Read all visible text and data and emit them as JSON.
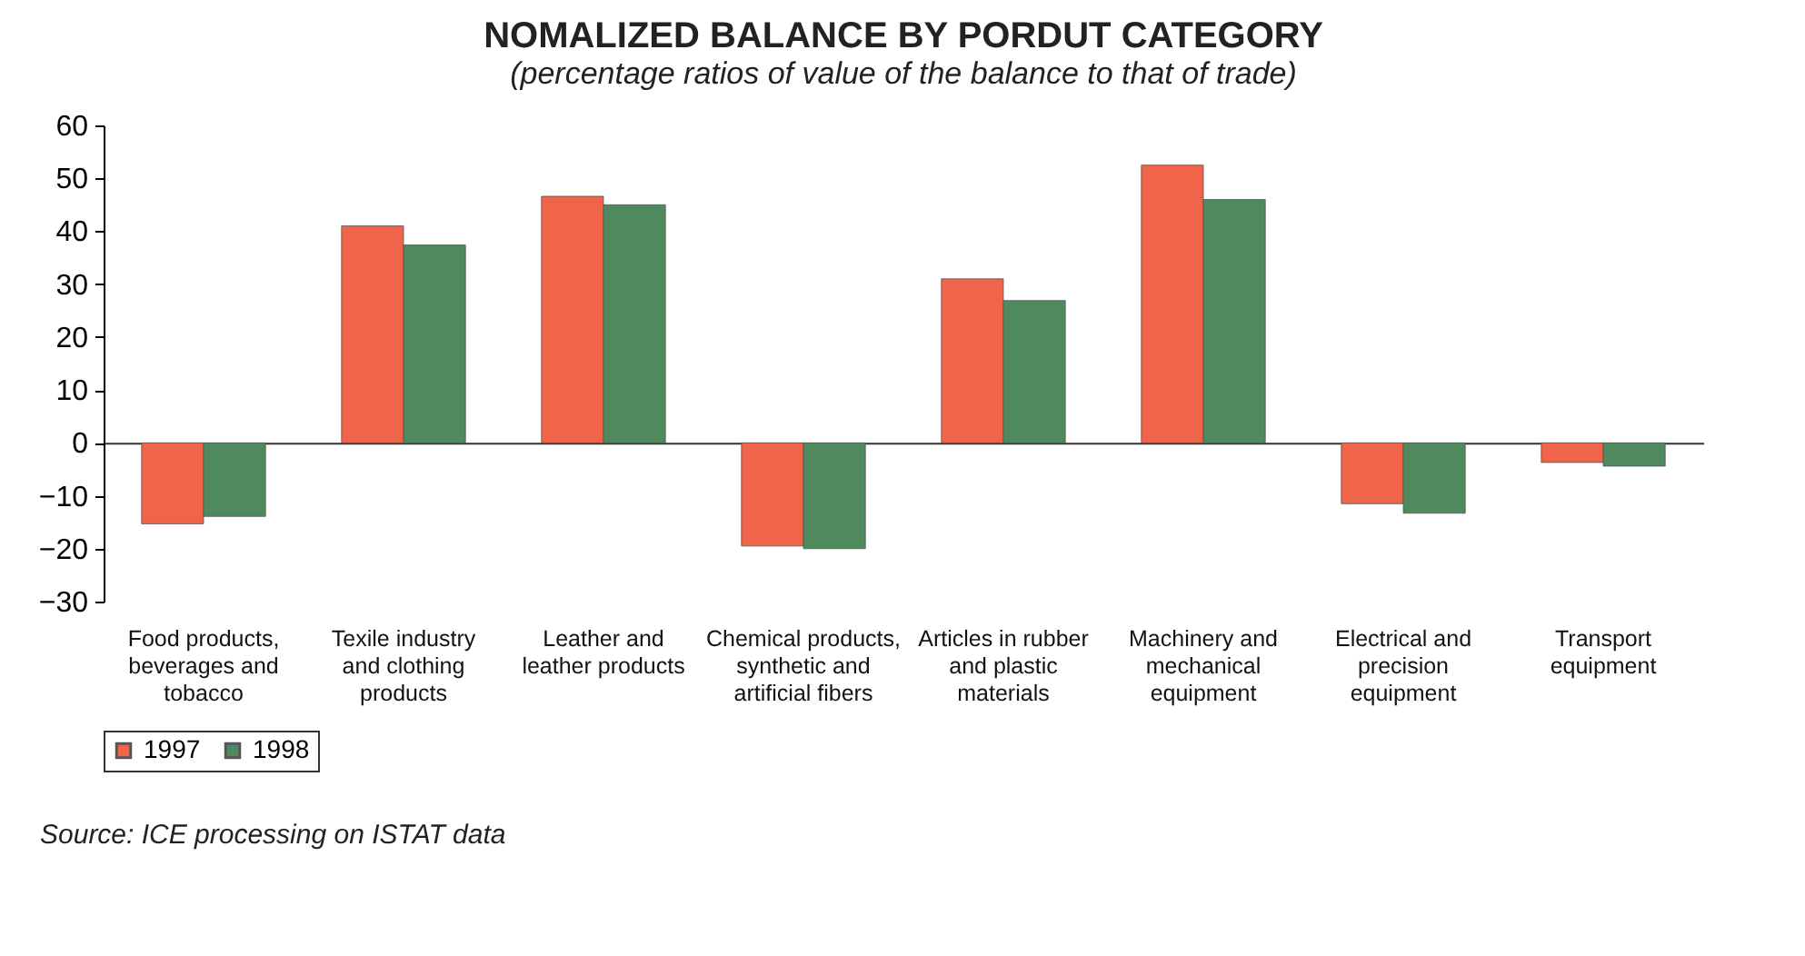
{
  "chart_data": {
    "type": "bar",
    "title": "NOMALIZED BALANCE BY PORDUT CATEGORY",
    "subtitle": "(percentage ratios of value of the balance to that of trade)",
    "categories": [
      "Food products, beverages and tobacco",
      "Texile industry and clothing products",
      "Leather and leather products",
      "Chemical products, synthetic and artificial fibers",
      "Articles in rubber and plastic materials",
      "Machinery and mechanical equipment",
      "Electrical and precision equipment",
      "Transport equipment"
    ],
    "series": [
      {
        "name": "1997",
        "color": "#f0644a",
        "values": [
          -15.3,
          41.0,
          46.6,
          -19.5,
          31.0,
          52.5,
          -11.5,
          -3.7
        ]
      },
      {
        "name": "1998",
        "color": "#4e8a5e",
        "values": [
          -13.9,
          37.4,
          45.0,
          -20.0,
          26.9,
          46.0,
          -13.3,
          -4.4
        ]
      }
    ],
    "ylim": [
      -30,
      60
    ],
    "yticks": [
      -30,
      -20,
      -10,
      0,
      10,
      20,
      30,
      40,
      50,
      60
    ],
    "legend": "bottom",
    "annotations": [
      "Source: ICE processing on ISTAT data"
    ]
  }
}
